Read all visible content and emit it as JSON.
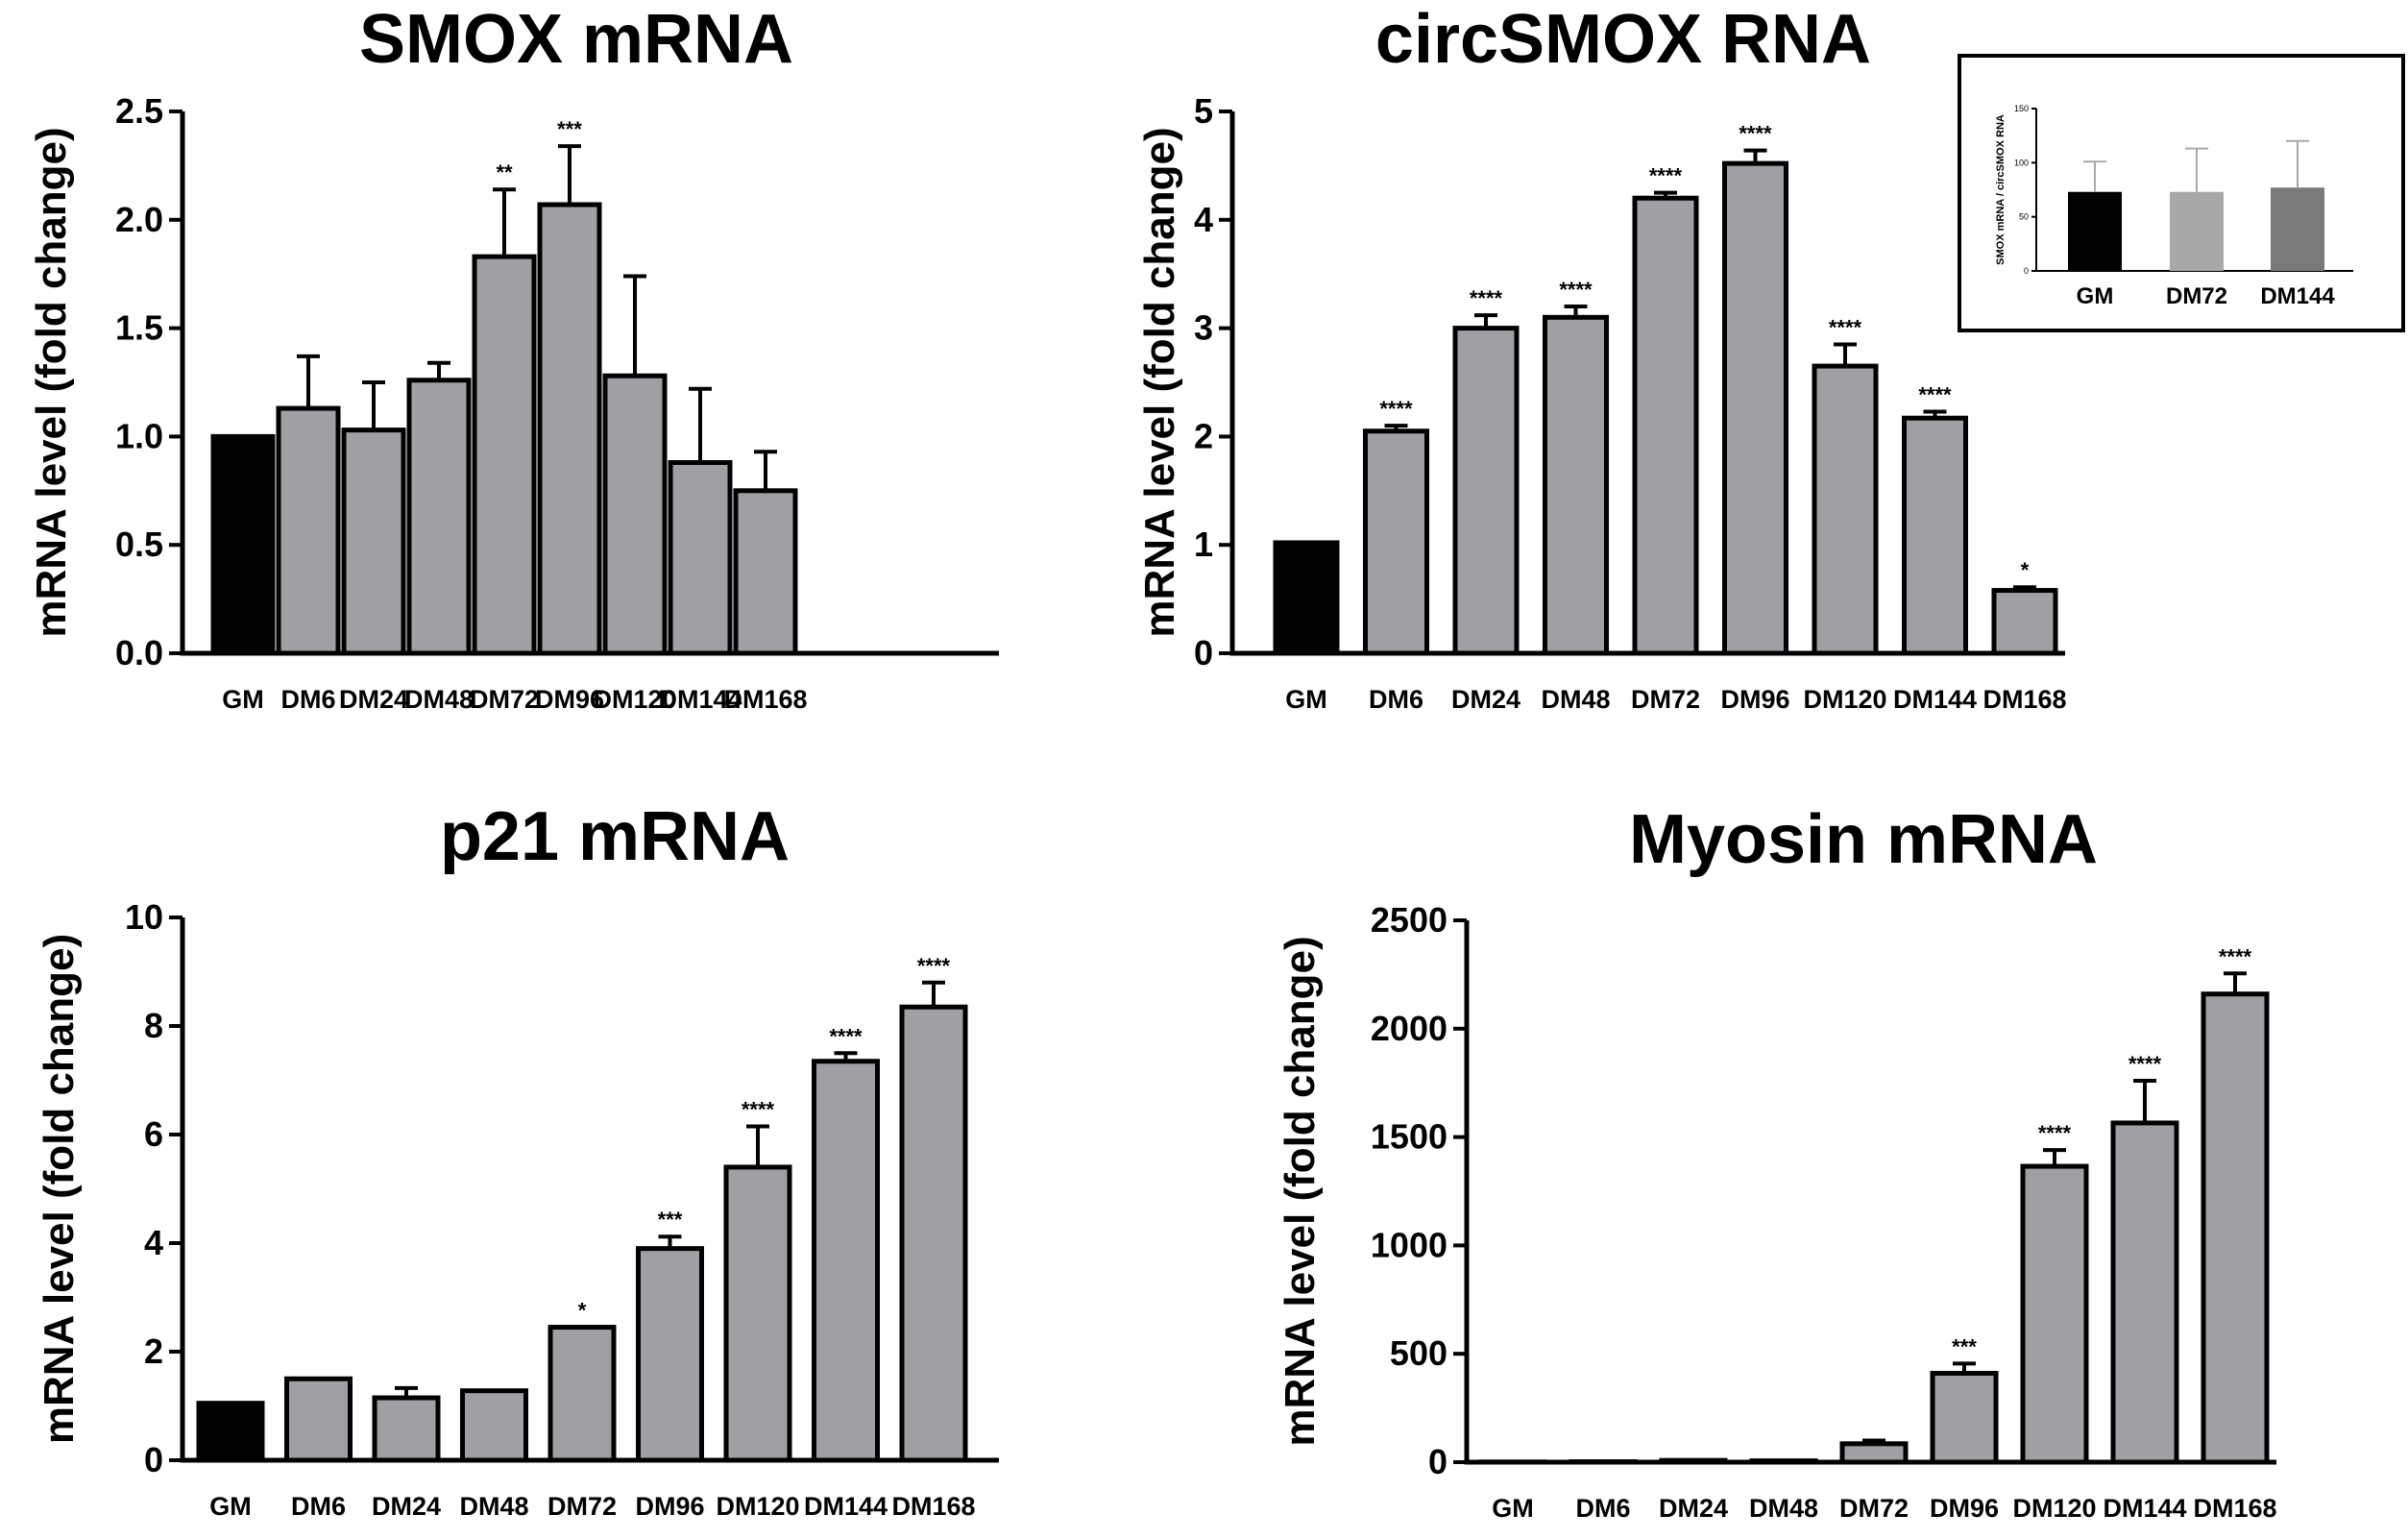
{
  "colors": {
    "control": "#000000",
    "treated": "#a0a0a4",
    "inset_series": [
      "#000000",
      "#a8a8a8",
      "#7a7a7a"
    ]
  },
  "chart_data": [
    {
      "type": "bar",
      "title": "SMOX mRNA",
      "ylabel": "mRNA level (fold change)",
      "xlabel": "",
      "ylim": [
        0,
        2.5
      ],
      "yticks": [
        "0.0",
        "0.5",
        "1.0",
        "1.5",
        "2.0",
        "2.5"
      ],
      "categories": [
        "GM",
        "DM6",
        "DM24",
        "DM48",
        "DM72",
        "DM96",
        "DM120",
        "DM144",
        "DM168"
      ],
      "values": [
        1.0,
        1.13,
        1.03,
        1.26,
        1.83,
        2.07,
        1.28,
        0.88,
        0.75
      ],
      "errors": [
        0.0,
        0.24,
        0.22,
        0.08,
        0.31,
        0.27,
        0.46,
        0.34,
        0.18
      ],
      "significance": [
        "",
        "",
        "",
        "",
        "**",
        "***",
        "",
        "",
        ""
      ]
    },
    {
      "type": "bar",
      "title": "circSMOX RNA",
      "ylabel": "mRNA level (fold change)",
      "xlabel": "",
      "ylim": [
        0,
        5
      ],
      "yticks": [
        "0",
        "1",
        "2",
        "3",
        "4",
        "5"
      ],
      "categories": [
        "GM",
        "DM6",
        "DM24",
        "DM48",
        "DM72",
        "DM96",
        "DM120",
        "DM144",
        "DM168"
      ],
      "values": [
        1.02,
        2.05,
        3.0,
        3.1,
        4.2,
        4.52,
        2.65,
        2.17,
        0.58
      ],
      "errors": [
        0.0,
        0.05,
        0.12,
        0.1,
        0.05,
        0.12,
        0.2,
        0.06,
        0.03
      ],
      "significance": [
        "",
        "****",
        "****",
        "****",
        "****",
        "****",
        "****",
        "****",
        "*"
      ],
      "inset": {
        "type": "bar",
        "ylabel": "SMOX mRNA / circSMOX RNA",
        "ylim": [
          0,
          150
        ],
        "yticks": [
          "0",
          "50",
          "100",
          "150"
        ],
        "categories": [
          "GM",
          "DM72",
          "DM144"
        ],
        "values": [
          73,
          73,
          77
        ],
        "errors": [
          28,
          40,
          43
        ]
      }
    },
    {
      "type": "bar",
      "title": "p21 mRNA",
      "ylabel": "mRNA level (fold change)",
      "xlabel": "",
      "ylim": [
        0,
        10
      ],
      "yticks": [
        "0",
        "2",
        "4",
        "6",
        "8",
        "10"
      ],
      "categories": [
        "GM",
        "DM6",
        "DM24",
        "DM48",
        "DM72",
        "DM96",
        "DM120",
        "DM144",
        "DM168"
      ],
      "values": [
        1.05,
        1.5,
        1.15,
        1.28,
        2.45,
        3.9,
        5.4,
        7.35,
        8.35
      ],
      "errors": [
        0.0,
        0.0,
        0.18,
        0.0,
        0.0,
        0.22,
        0.75,
        0.15,
        0.45
      ],
      "significance": [
        "",
        "",
        "",
        "",
        "*",
        "***",
        "****",
        "****",
        "****"
      ]
    },
    {
      "type": "bar",
      "title": "Myosin mRNA",
      "ylabel": "mRNA level (fold change)",
      "xlabel": "",
      "ylim": [
        0,
        2500
      ],
      "yticks": [
        "0",
        "500",
        "1000",
        "1500",
        "2000",
        "2500"
      ],
      "categories": [
        "GM",
        "DM6",
        "DM24",
        "DM48",
        "DM72",
        "DM96",
        "DM120",
        "DM144",
        "DM168"
      ],
      "values": [
        1,
        2,
        8,
        6,
        85,
        410,
        1365,
        1565,
        2160
      ],
      "errors": [
        0,
        0,
        0,
        0,
        15,
        45,
        75,
        195,
        95
      ],
      "significance": [
        "",
        "",
        "",
        "",
        "",
        "***",
        "****",
        "****",
        "****"
      ]
    }
  ]
}
